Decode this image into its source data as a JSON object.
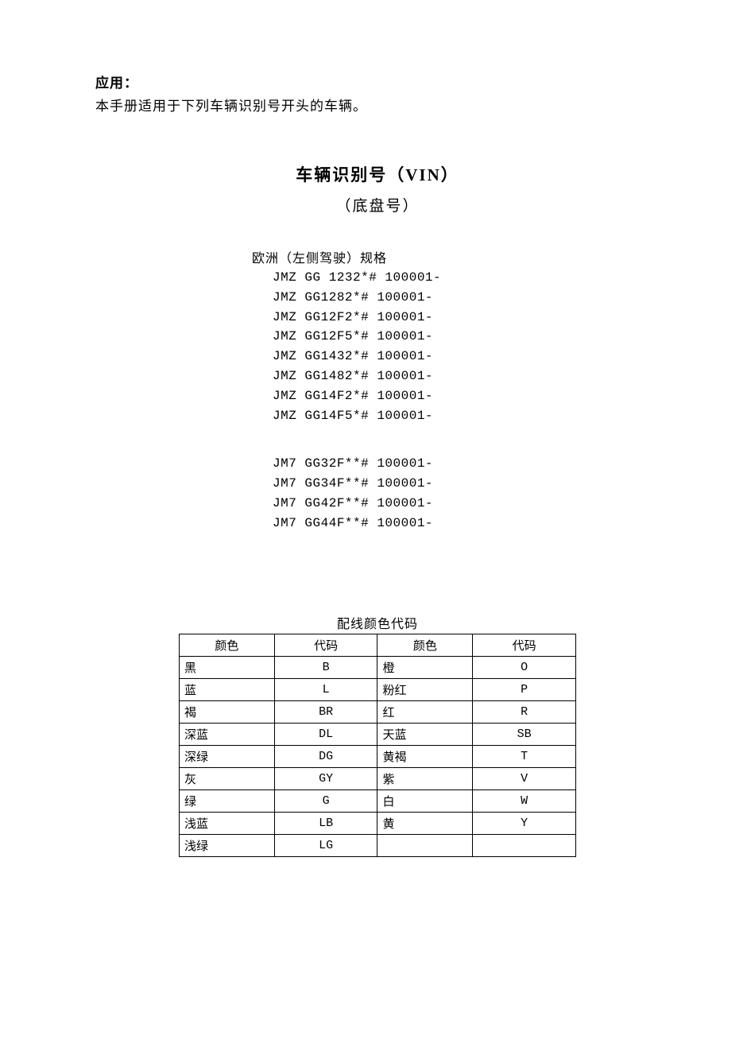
{
  "intro": {
    "heading": "应用：",
    "line": "本手册适用于下列车辆识别号开头的车辆。"
  },
  "titles": {
    "main": "车辆识别号（VIN）",
    "sub": "（底盘号）",
    "spec": "欧洲（左侧驾驶）规格",
    "table": "配线颜色代码"
  },
  "vin_group_a": [
    "JMZ GG 1232*# 100001-",
    "JMZ GG1282*# 100001-",
    "JMZ GG12F2*# 100001-",
    "JMZ GG12F5*# 100001-",
    "JMZ GG1432*# 100001-",
    "JMZ GG1482*# 100001-",
    "JMZ GG14F2*# 100001-",
    "JMZ GG14F5*# 100001-"
  ],
  "vin_group_b": [
    "JM7 GG32F**# 100001-",
    "JM7 GG34F**# 100001-",
    "JM7 GG42F**# 100001-",
    "JM7 GG44F**# 100001-"
  ],
  "color_table": {
    "headers": {
      "color": "颜色",
      "code": "代码"
    },
    "rows": [
      {
        "c1": "黑",
        "d1": "B",
        "c2": "橙",
        "d2": "O"
      },
      {
        "c1": "蓝",
        "d1": "L",
        "c2": "粉红",
        "d2": "P"
      },
      {
        "c1": "褐",
        "d1": "BR",
        "c2": "红",
        "d2": "R"
      },
      {
        "c1": "深蓝",
        "d1": "DL",
        "c2": "天蓝",
        "d2": "SB"
      },
      {
        "c1": "深绿",
        "d1": "DG",
        "c2": "黄褐",
        "d2": "T"
      },
      {
        "c1": "灰",
        "d1": "GY",
        "c2": "紫",
        "d2": "V"
      },
      {
        "c1": "绿",
        "d1": "G",
        "c2": "白",
        "d2": "W"
      },
      {
        "c1": "浅蓝",
        "d1": "LB",
        "c2": "黄",
        "d2": "Y"
      },
      {
        "c1": "浅绿",
        "d1": "LG",
        "c2": "",
        "d2": ""
      }
    ]
  }
}
